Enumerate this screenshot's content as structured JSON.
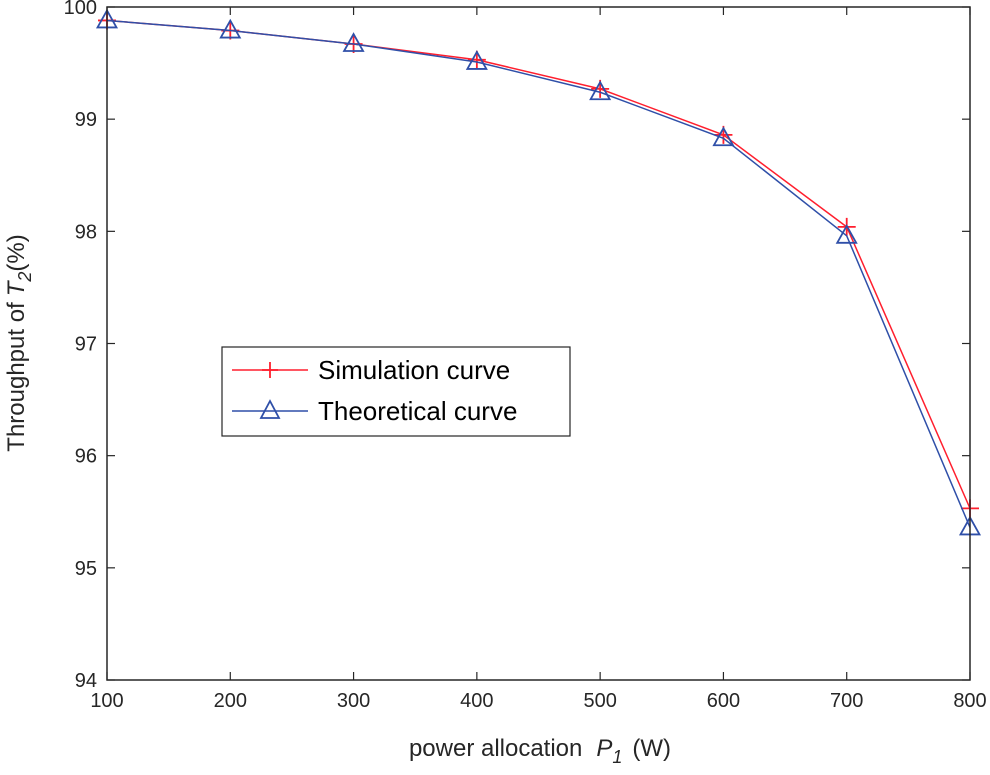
{
  "chart_data": {
    "type": "line",
    "title": "",
    "xlabel": "power allocation",
    "xlabel_symbol": "P",
    "xlabel_subscript": "1",
    "xlabel_unit": "(W)",
    "ylabel": "Throughput of",
    "ylabel_symbol": "T",
    "ylabel_subscript": "2",
    "ylabel_unit": "(%)",
    "xlim": [
      100,
      800
    ],
    "ylim": [
      94,
      100
    ],
    "xticks": [
      100,
      200,
      300,
      400,
      500,
      600,
      700,
      800
    ],
    "yticks": [
      94,
      95,
      96,
      97,
      98,
      99,
      100
    ],
    "grid": false,
    "legend_position": "center-left",
    "x": [
      100,
      200,
      300,
      400,
      500,
      600,
      700,
      800
    ],
    "series": [
      {
        "name": "Simulation curve",
        "color": "#ff1f2e",
        "marker": "plus",
        "values": [
          99.88,
          99.79,
          99.67,
          99.53,
          99.27,
          98.86,
          98.04,
          95.53
        ]
      },
      {
        "name": "Theoretical curve",
        "color": "#2f4fa8",
        "marker": "triangle",
        "values": [
          99.88,
          99.79,
          99.67,
          99.51,
          99.24,
          98.83,
          97.96,
          95.36
        ]
      }
    ]
  }
}
